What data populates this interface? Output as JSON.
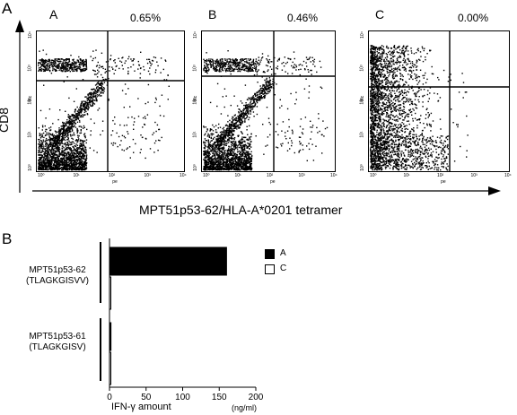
{
  "panel_a": {
    "letter": "A",
    "y_label": "CD8",
    "x_label": "MPT51p53-62/HLA-A*0201 tetramer",
    "plots": [
      {
        "label": "A",
        "percent": "0.65%",
        "y_axis_label": "fitc",
        "x_axis_label": "pe",
        "x_ticks": [
          "10⁰",
          "10¹",
          "10²",
          "10³",
          "10⁴"
        ],
        "y_ticks": [
          "10⁰",
          "10¹",
          "10²",
          "10³",
          "10⁴"
        ]
      },
      {
        "label": "B",
        "percent": "0.46%",
        "y_axis_label": "fitc",
        "x_axis_label": "pe",
        "x_ticks": [
          "10⁰",
          "10¹",
          "10²",
          "10³",
          "10⁴"
        ],
        "y_ticks": [
          "10⁰",
          "10¹",
          "10²",
          "10³",
          "10⁴"
        ]
      },
      {
        "label": "C",
        "percent": "0.00%",
        "y_axis_label": "fitc",
        "x_axis_label": "pe",
        "x_ticks": [
          "10⁰",
          "10¹",
          "10²",
          "10³",
          "10⁴"
        ],
        "y_ticks": [
          "10⁰",
          "10¹",
          "10²",
          "10³",
          "10⁴"
        ]
      }
    ]
  },
  "panel_b": {
    "letter": "B",
    "groups": [
      {
        "line1": "MPT51p53-62",
        "line2": "(TLAGKGISVV)"
      },
      {
        "line1": "MPT51p53-61",
        "line2": "(TLAGKGISV)"
      }
    ],
    "x_label": "IFN-γ amount",
    "x_unit": "(ng/ml)",
    "legend": [
      {
        "label": "A",
        "fill": "#000000"
      },
      {
        "label": "C",
        "fill": "#ffffff"
      }
    ]
  },
  "chart_data": {
    "type": "bar",
    "orientation": "horizontal",
    "categories": [
      "MPT51p53-62 (TLAGKGISVV)",
      "MPT51p53-61 (TLAGKGISV)"
    ],
    "series": [
      {
        "name": "A",
        "values": [
          160,
          2
        ]
      },
      {
        "name": "C",
        "values": [
          1,
          1
        ]
      }
    ],
    "xlabel": "IFN-γ amount",
    "xunit": "(ng/ml)",
    "xlim": [
      0,
      200
    ],
    "x_ticks": [
      0,
      50,
      100,
      150,
      200
    ],
    "legend_position": "right"
  }
}
